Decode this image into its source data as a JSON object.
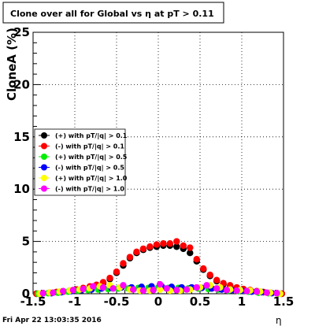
{
  "title": "Clone  over all for Global vs   η at pT > 0.11",
  "footer": "Fri Apr 22 13:03:35 2016",
  "chart_data": {
    "type": "scatter",
    "xlabel": "η",
    "ylabel": "CloneA (%)",
    "xlim": [
      -1.5,
      1.5
    ],
    "ylim": [
      0,
      25
    ],
    "x_ticks": [
      "-1.5",
      "-1",
      "-0.5",
      "0",
      "0.5",
      "1",
      "1.5"
    ],
    "y_ticks": [
      "0",
      "5",
      "10",
      "15",
      "20",
      "25"
    ],
    "grid": true,
    "legend_position": "left-middle",
    "series": [
      {
        "name": "(+) with pT/|q| > 0.1",
        "color": "#000000",
        "x": [
          -1.46,
          -1.38,
          -1.3,
          -1.22,
          -1.14,
          -1.06,
          -0.98,
          -0.9,
          -0.82,
          -0.74,
          -0.66,
          -0.58,
          -0.5,
          -0.42,
          -0.34,
          -0.26,
          -0.18,
          -0.1,
          -0.02,
          0.06,
          0.14,
          0.22,
          0.3,
          0.38,
          0.46,
          0.54,
          0.62,
          0.7,
          0.78,
          0.86,
          0.94,
          1.02,
          1.1,
          1.18,
          1.26,
          1.34,
          1.42,
          1.48
        ],
        "y": [
          0.0,
          0.05,
          0.1,
          0.15,
          0.2,
          0.3,
          0.4,
          0.5,
          0.65,
          0.8,
          1.0,
          1.4,
          2.0,
          2.7,
          3.4,
          3.9,
          4.2,
          4.4,
          4.5,
          4.6,
          4.6,
          4.5,
          4.3,
          3.9,
          3.1,
          2.3,
          1.7,
          1.2,
          0.9,
          0.7,
          0.5,
          0.4,
          0.3,
          0.2,
          0.15,
          0.1,
          0.05,
          0.0
        ]
      },
      {
        "name": "(-) with pT/|q| > 0.1",
        "color": "#ff0000",
        "x": [
          -1.46,
          -1.38,
          -1.3,
          -1.22,
          -1.14,
          -1.06,
          -0.98,
          -0.9,
          -0.82,
          -0.74,
          -0.66,
          -0.58,
          -0.5,
          -0.42,
          -0.34,
          -0.26,
          -0.18,
          -0.1,
          -0.02,
          0.06,
          0.14,
          0.22,
          0.3,
          0.38,
          0.46,
          0.54,
          0.62,
          0.7,
          0.78,
          0.86,
          0.94,
          1.02,
          1.1,
          1.18,
          1.26,
          1.34,
          1.42,
          1.48
        ],
        "y": [
          0.0,
          0.05,
          0.1,
          0.15,
          0.2,
          0.3,
          0.4,
          0.55,
          0.7,
          0.85,
          1.1,
          1.5,
          2.1,
          2.9,
          3.5,
          4.0,
          4.3,
          4.5,
          4.7,
          4.8,
          4.8,
          5.0,
          4.6,
          4.4,
          3.3,
          2.4,
          1.8,
          1.3,
          1.0,
          0.8,
          0.6,
          0.45,
          0.35,
          0.25,
          0.15,
          0.1,
          0.05,
          0.0
        ]
      },
      {
        "name": "(+) with pT/|q| > 0.5",
        "color": "#00ee00",
        "x": [
          -1.44,
          -1.32,
          -1.2,
          -1.08,
          -0.96,
          -0.84,
          -0.72,
          -0.6,
          -0.48,
          -0.36,
          -0.24,
          -0.12,
          0.0,
          0.12,
          0.24,
          0.36,
          0.48,
          0.6,
          0.72,
          0.84,
          0.96,
          1.08,
          1.2,
          1.32,
          1.44
        ],
        "y": [
          0.0,
          0.05,
          0.1,
          0.2,
          0.3,
          0.35,
          0.4,
          0.45,
          0.5,
          0.5,
          0.55,
          0.55,
          0.6,
          0.55,
          0.55,
          0.5,
          0.5,
          0.45,
          0.4,
          0.3,
          0.25,
          0.2,
          0.1,
          0.05,
          0.0
        ]
      },
      {
        "name": "(-) with pT/|q| > 0.5",
        "color": "#0000ff",
        "x": [
          -1.4,
          -1.28,
          -1.16,
          -1.04,
          -0.92,
          -0.8,
          -0.68,
          -0.56,
          -0.44,
          -0.32,
          -0.2,
          -0.08,
          0.04,
          0.16,
          0.28,
          0.4,
          0.52,
          0.64,
          0.76,
          0.88,
          1.0,
          1.12,
          1.24,
          1.36,
          1.46
        ],
        "y": [
          0.0,
          0.05,
          0.15,
          0.25,
          0.35,
          0.4,
          0.5,
          0.55,
          0.6,
          0.6,
          0.65,
          0.7,
          0.7,
          0.65,
          0.6,
          0.6,
          0.55,
          0.5,
          0.4,
          0.35,
          0.3,
          0.2,
          0.15,
          0.05,
          0.0
        ]
      },
      {
        "name": "(+) with pT/|q| > 1.0",
        "color": "#ffff00",
        "x": [
          -1.42,
          -1.3,
          -1.18,
          -1.06,
          -0.94,
          -0.82,
          -0.7,
          -0.58,
          -0.46,
          -0.34,
          -0.22,
          -0.1,
          0.02,
          0.14,
          0.26,
          0.38,
          0.5,
          0.62,
          0.74,
          0.86,
          0.98,
          1.1,
          1.22,
          1.34,
          1.46
        ],
        "y": [
          0.0,
          0.1,
          0.2,
          0.3,
          0.4,
          0.5,
          0.7,
          0.8,
          0.6,
          0.4,
          0.3,
          0.3,
          0.4,
          0.3,
          0.3,
          0.4,
          0.6,
          0.8,
          0.6,
          0.4,
          0.35,
          0.3,
          0.2,
          0.1,
          0.0
        ]
      },
      {
        "name": "(-) with pT/|q| > 1.0",
        "color": "#ff00ff",
        "x": [
          -1.38,
          -1.26,
          -1.14,
          -1.02,
          -0.9,
          -0.78,
          -0.66,
          -0.54,
          -0.42,
          -0.3,
          -0.18,
          -0.06,
          0.02,
          0.1,
          0.22,
          0.34,
          0.46,
          0.58,
          0.7,
          0.82,
          0.94,
          1.06,
          1.18,
          1.3,
          1.42
        ],
        "y": [
          0.05,
          0.1,
          0.25,
          0.35,
          0.45,
          0.7,
          0.6,
          0.5,
          0.8,
          0.4,
          0.3,
          0.35,
          0.9,
          0.5,
          0.35,
          0.4,
          0.6,
          0.8,
          0.5,
          0.35,
          0.3,
          0.25,
          0.2,
          0.1,
          0.05
        ]
      }
    ]
  }
}
